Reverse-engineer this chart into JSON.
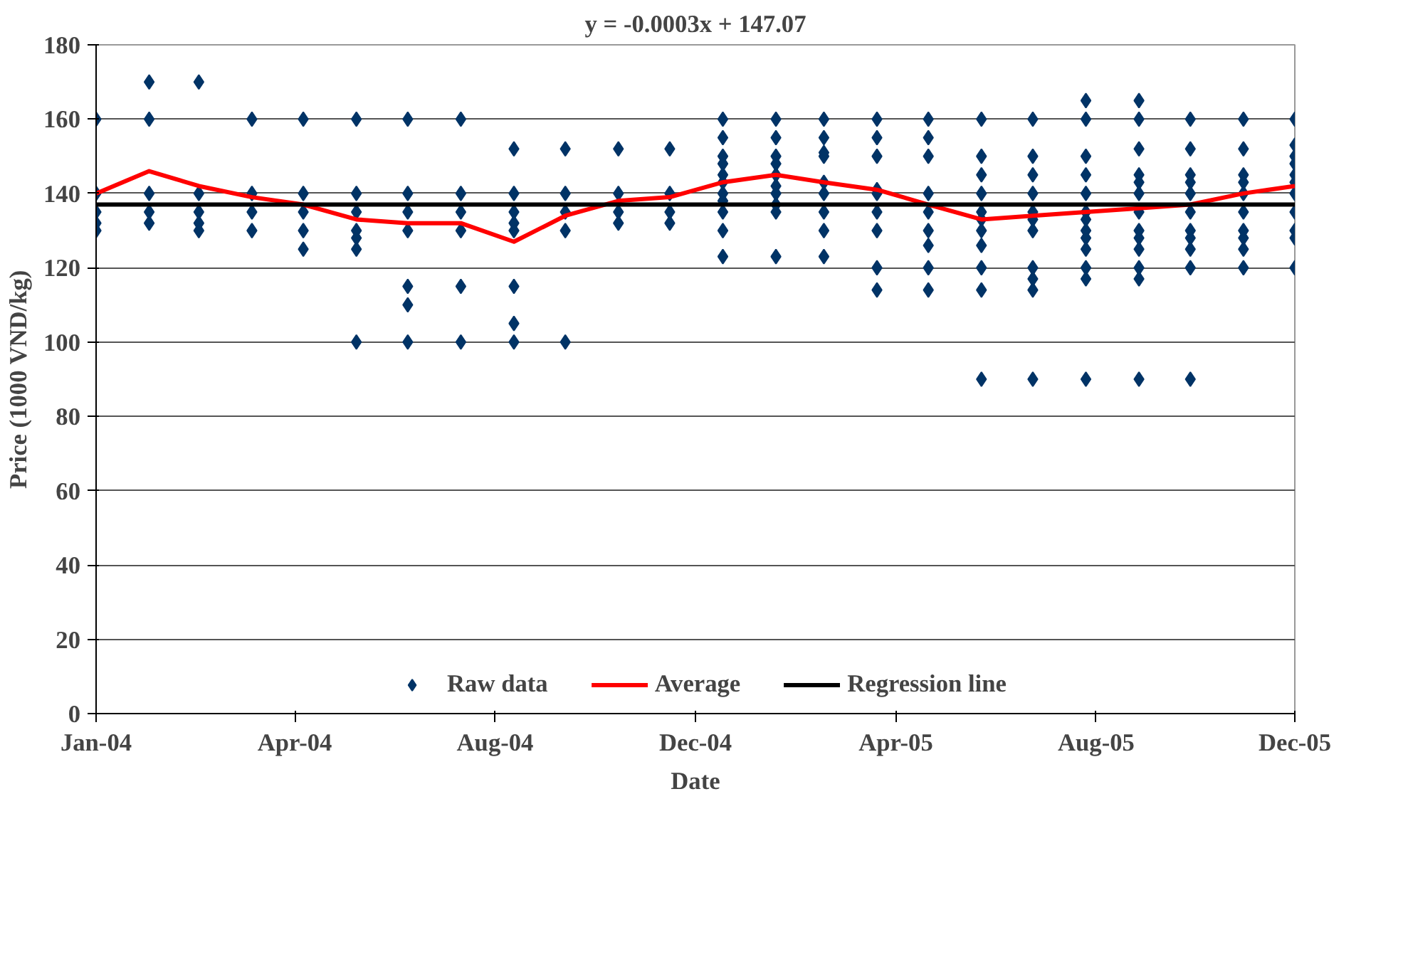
{
  "chart_data": {
    "type": "scatter",
    "title": "y = -0.0003x + 147.07",
    "xlabel": "Date",
    "ylabel": "Price (1000 VND/kg)",
    "xlim": [
      "2004-01",
      "2005-12"
    ],
    "ylim": [
      0,
      180
    ],
    "yticks": [
      0,
      20,
      40,
      60,
      80,
      100,
      120,
      140,
      160,
      180
    ],
    "xticks": [
      {
        "value": "2004-01-01",
        "label": "Jan-04"
      },
      {
        "value": "2004-04-26",
        "label": "Apr-04"
      },
      {
        "value": "2004-08-21",
        "label": "Aug-04"
      },
      {
        "value": "2004-12-16",
        "label": "Dec-04"
      },
      {
        "value": "2005-04-12",
        "label": "Apr-05"
      },
      {
        "value": "2005-08-07",
        "label": "Aug-05"
      },
      {
        "value": "2005-12-01",
        "label": "Dec-05"
      }
    ],
    "grid": "y",
    "legend": "bottom",
    "series": [
      {
        "name": "Raw data",
        "marker": "diamond",
        "color": "#003366",
        "x": [
          "2004-01",
          "2004-01",
          "2004-01",
          "2004-01",
          "2004-01",
          "2004-02",
          "2004-02",
          "2004-02",
          "2004-02",
          "2004-02",
          "2004-03",
          "2004-03",
          "2004-03",
          "2004-03",
          "2004-03",
          "2004-04",
          "2004-04",
          "2004-04",
          "2004-04",
          "2004-05",
          "2004-05",
          "2004-05",
          "2004-05",
          "2004-05",
          "2004-06",
          "2004-06",
          "2004-06",
          "2004-06",
          "2004-06",
          "2004-06",
          "2004-06",
          "2004-07",
          "2004-07",
          "2004-07",
          "2004-07",
          "2004-07",
          "2004-07",
          "2004-07",
          "2004-08",
          "2004-08",
          "2004-08",
          "2004-08",
          "2004-08",
          "2004-08",
          "2004-09",
          "2004-09",
          "2004-09",
          "2004-09",
          "2004-09",
          "2004-09",
          "2004-09",
          "2004-09",
          "2004-10",
          "2004-10",
          "2004-10",
          "2004-10",
          "2004-10",
          "2004-11",
          "2004-11",
          "2004-11",
          "2004-11",
          "2004-12",
          "2004-12",
          "2004-12",
          "2004-12",
          "2005-01",
          "2005-01",
          "2005-01",
          "2005-01",
          "2005-01",
          "2005-01",
          "2005-01",
          "2005-01",
          "2005-01",
          "2005-01",
          "2005-01",
          "2005-02",
          "2005-02",
          "2005-02",
          "2005-02",
          "2005-02",
          "2005-02",
          "2005-02",
          "2005-02",
          "2005-02",
          "2005-02",
          "2005-03",
          "2005-03",
          "2005-03",
          "2005-03",
          "2005-03",
          "2005-03",
          "2005-03",
          "2005-03",
          "2005-03",
          "2005-04",
          "2005-04",
          "2005-04",
          "2005-04",
          "2005-04",
          "2005-04",
          "2005-04",
          "2005-04",
          "2005-04",
          "2005-05",
          "2005-05",
          "2005-05",
          "2005-05",
          "2005-05",
          "2005-05",
          "2005-05",
          "2005-05",
          "2005-05",
          "2005-06",
          "2005-06",
          "2005-06",
          "2005-06",
          "2005-06",
          "2005-06",
          "2005-06",
          "2005-06",
          "2005-06",
          "2005-06",
          "2005-06",
          "2005-07",
          "2005-07",
          "2005-07",
          "2005-07",
          "2005-07",
          "2005-07",
          "2005-07",
          "2005-07",
          "2005-07",
          "2005-07",
          "2005-07",
          "2005-08",
          "2005-08",
          "2005-08",
          "2005-08",
          "2005-08",
          "2005-08",
          "2005-08",
          "2005-08",
          "2005-08",
          "2005-08",
          "2005-08",
          "2005-08",
          "2005-08",
          "2005-09",
          "2005-09",
          "2005-09",
          "2005-09",
          "2005-09",
          "2005-09",
          "2005-09",
          "2005-09",
          "2005-09",
          "2005-09",
          "2005-09",
          "2005-09",
          "2005-09",
          "2005-10",
          "2005-10",
          "2005-10",
          "2005-10",
          "2005-10",
          "2005-10",
          "2005-10",
          "2005-10",
          "2005-10",
          "2005-10",
          "2005-10",
          "2005-11",
          "2005-11",
          "2005-11",
          "2005-11",
          "2005-11",
          "2005-11",
          "2005-11",
          "2005-11",
          "2005-11",
          "2005-11",
          "2005-12",
          "2005-12",
          "2005-12",
          "2005-12",
          "2005-12",
          "2005-12",
          "2005-12",
          "2005-12",
          "2005-12",
          "2005-12",
          "2005-12"
        ],
        "values": [
          160,
          140,
          135,
          132,
          130,
          170,
          160,
          140,
          135,
          132,
          170,
          140,
          135,
          132,
          130,
          160,
          140,
          135,
          130,
          160,
          140,
          135,
          130,
          125,
          160,
          140,
          135,
          130,
          128,
          125,
          100,
          160,
          140,
          135,
          130,
          115,
          110,
          100,
          160,
          140,
          135,
          130,
          115,
          100,
          152,
          140,
          135,
          132,
          130,
          115,
          105,
          100,
          152,
          140,
          135,
          130,
          100,
          152,
          140,
          135,
          132,
          152,
          140,
          135,
          132,
          160,
          155,
          150,
          148,
          145,
          143,
          140,
          138,
          135,
          130,
          123,
          160,
          155,
          150,
          148,
          145,
          142,
          140,
          137,
          135,
          123,
          160,
          155,
          151,
          150,
          143,
          140,
          135,
          130,
          123,
          160,
          155,
          150,
          141,
          140,
          135,
          130,
          120,
          114,
          160,
          155,
          150,
          140,
          135,
          130,
          126,
          120,
          114,
          160,
          150,
          145,
          140,
          135,
          133,
          130,
          126,
          120,
          114,
          90,
          160,
          150,
          145,
          140,
          135,
          133,
          130,
          120,
          117,
          114,
          90,
          165,
          160,
          150,
          145,
          140,
          135,
          133,
          130,
          128,
          125,
          120,
          117,
          90,
          165,
          160,
          152,
          145,
          143,
          140,
          135,
          130,
          128,
          125,
          120,
          117,
          90,
          160,
          152,
          145,
          143,
          140,
          135,
          130,
          128,
          125,
          120,
          90,
          160,
          152,
          145,
          143,
          140,
          135,
          130,
          128,
          125,
          120,
          160,
          153,
          150,
          148,
          145,
          143,
          140,
          135,
          130,
          128,
          120
        ]
      },
      {
        "name": "Average",
        "type": "line",
        "color": "#ff0000",
        "line_style": "solid",
        "x": [
          "2004-01",
          "2004-02",
          "2004-03",
          "2004-04",
          "2004-05",
          "2004-06",
          "2004-07",
          "2004-08",
          "2004-09",
          "2004-10",
          "2004-11",
          "2004-12",
          "2005-01",
          "2005-02",
          "2005-03",
          "2005-04",
          "2005-05",
          "2005-06",
          "2005-07",
          "2005-08",
          "2005-09",
          "2005-10",
          "2005-11",
          "2005-12"
        ],
        "values": [
          140,
          146,
          142,
          139,
          137,
          133,
          132,
          132,
          127,
          134,
          138,
          139,
          143,
          145,
          143,
          141,
          137,
          133,
          134,
          135,
          136,
          137,
          140,
          142
        ]
      },
      {
        "name": "Regression line",
        "type": "line",
        "color": "#000000",
        "line_style": "solid",
        "x": [
          "2004-01",
          "2005-12"
        ],
        "values": [
          137,
          137
        ]
      }
    ]
  }
}
